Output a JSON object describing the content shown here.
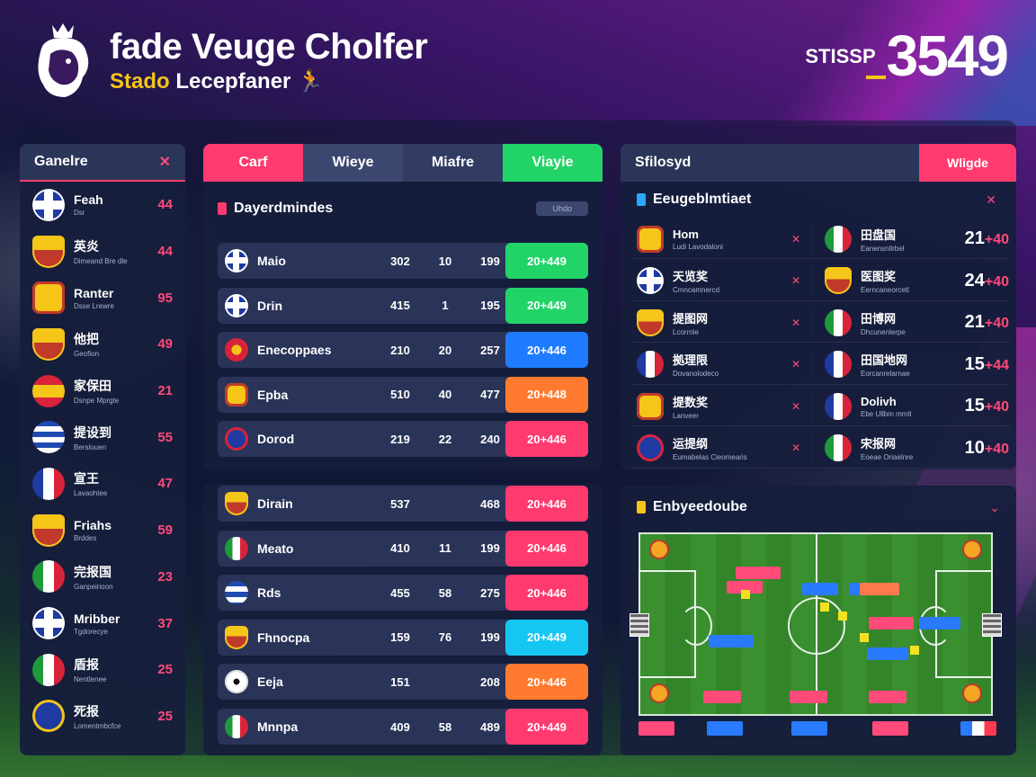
{
  "header": {
    "title": "fade Veuge Cholfer",
    "subtitle_accent": "Stado",
    "subtitle_rest": "Lecepfaner",
    "score_label": "STISSP",
    "score_value": "3549"
  },
  "colors": {
    "accent_pink": "#ff3a6e",
    "accent_green": "#22d468",
    "accent_blue": "#1f7bff",
    "accent_orange": "#ff7a2e",
    "accent_cyan": "#16c6f2",
    "accent_yellow": "#f5c518"
  },
  "sidebar": {
    "title": "Ganelre",
    "items": [
      {
        "name": "Feah",
        "sub": "Dsr",
        "value": "44",
        "badge": "uk-flag-icon"
      },
      {
        "name": "英炎",
        "sub": "Dimeand Bre dle",
        "value": "44",
        "badge": "shield-crest-icon"
      },
      {
        "name": "Ranter",
        "sub": "Dsse Lrewre",
        "value": "95",
        "badge": "hex-crest-icon"
      },
      {
        "name": "他把",
        "sub": "Geofion",
        "value": "49",
        "badge": "shield-crest-icon"
      },
      {
        "name": "家保田",
        "sub": "Dsnpe Mprgte",
        "value": "21",
        "badge": "spain-flag-icon"
      },
      {
        "name": "提设到",
        "sub": "Berslouen",
        "value": "55",
        "badge": "striped-flag-icon"
      },
      {
        "name": "宣王",
        "sub": "Lavaohtee",
        "value": "47",
        "badge": "france-flag-icon"
      },
      {
        "name": "Friahs",
        "sub": "Brddes",
        "value": "59",
        "badge": "shield-crest-icon"
      },
      {
        "name": "完报国",
        "sub": "Ganpeirioon",
        "value": "23",
        "badge": "italy-flag-icon"
      },
      {
        "name": "Mribber",
        "sub": "Tgdorecye",
        "value": "37",
        "badge": "uk-flag-icon"
      },
      {
        "name": "盾报",
        "sub": "Nentlenee",
        "value": "25",
        "badge": "italy-flag-icon"
      },
      {
        "name": "死报",
        "sub": "Lomentmbcfce",
        "value": "25",
        "badge": "number-crest-icon"
      }
    ]
  },
  "center": {
    "tabs": [
      "Carf",
      "Wieye",
      "Miafre",
      "Viayie"
    ],
    "section_title": "Dayerdmindes",
    "pill_label": "Uhdo",
    "rows_top": [
      {
        "name": "Maio",
        "c1": "302",
        "c2": "10",
        "c3": "199",
        "action": "20+449",
        "badge": "uk-flag-icon",
        "btn_color": "#22d468"
      },
      {
        "name": "Drin",
        "c1": "415",
        "c2": "1",
        "c3": "195",
        "action": "20+449",
        "badge": "uk-flag-icon",
        "btn_color": "#22d468"
      },
      {
        "name": "Enecoppaes",
        "c1": "210",
        "c2": "20",
        "c3": "257",
        "action": "20+446",
        "badge": "star-crest-icon",
        "btn_color": "#1f7bff"
      },
      {
        "name": "Epba",
        "c1": "510",
        "c2": "40",
        "c3": "477",
        "action": "20+448",
        "badge": "hex-crest-icon",
        "btn_color": "#ff7a2e"
      },
      {
        "name": "Dorod",
        "c1": "219",
        "c2": "22",
        "c3": "240",
        "action": "20+446",
        "badge": "club-crest-icon",
        "btn_color": "#ff3a6e"
      }
    ],
    "rows_bottom": [
      {
        "name": "Dirain",
        "c1": "537",
        "c2": "",
        "c3": "468",
        "action": "20+446",
        "badge": "shield-crest-icon",
        "btn_color": "#ff3a6e"
      },
      {
        "name": "Meato",
        "c1": "410",
        "c2": "11",
        "c3": "199",
        "action": "20+446",
        "badge": "italy-flag-icon",
        "btn_color": "#ff3a6e"
      },
      {
        "name": "Rds",
        "c1": "455",
        "c2": "58",
        "c3": "275",
        "action": "20+446",
        "badge": "striped-flag-icon",
        "btn_color": "#ff3a6e"
      },
      {
        "name": "Fhnocpa",
        "c1": "159",
        "c2": "76",
        "c3": "199",
        "action": "20+449",
        "badge": "shield-crest-icon",
        "btn_color": "#16c6f2"
      },
      {
        "name": "Eeja",
        "c1": "151",
        "c2": "",
        "c3": "208",
        "action": "20+446",
        "badge": "ball-icon",
        "btn_color": "#ff7a2e"
      },
      {
        "name": "Mnnpa",
        "c1": "409",
        "c2": "58",
        "c3": "489",
        "action": "20+449",
        "badge": "italy-flag-icon",
        "btn_color": "#ff3a6e"
      }
    ]
  },
  "fixtures": {
    "header_left": "Sfilosyd",
    "header_right": "Wligde",
    "section_title": "Eeugeblmtiaet",
    "matches": [
      {
        "home": "Hom",
        "home_sub": "Ludi Lavodaloni",
        "away": "田盘国",
        "away_sub": "Eanensnllrbel",
        "score": "21",
        "delta": "+40",
        "home_badge": "hex-crest-icon",
        "away_badge": "italy-flag-icon"
      },
      {
        "name_check": "",
        "home": "天览奖",
        "home_sub": "Cmncamnercd",
        "away": "医图奖",
        "away_sub": "Eerncaneorcetl",
        "score": "24",
        "delta": "+40",
        "home_badge": "uk-flag-icon",
        "away_badge": "shield-crest-icon"
      },
      {
        "home": "提图网",
        "home_sub": "Lcorrnle",
        "away": "田博网",
        "away_sub": "Dhcunenlerpe",
        "score": "21",
        "delta": "+40",
        "home_badge": "shield-crest-icon",
        "away_badge": "italy-flag-icon"
      },
      {
        "home": "拠理限",
        "home_sub": "Dovanolodeco",
        "away": "田国地网",
        "away_sub": "Eorcanrelarnae",
        "score": "15",
        "delta": "+44",
        "home_badge": "france-flag-icon",
        "away_badge": "france-flag-icon"
      },
      {
        "home": "提数奖",
        "home_sub": "Lanveer",
        "away": "Dolivh",
        "away_sub": "Ebe Ullbm mmtl",
        "score": "15",
        "delta": "+40",
        "home_badge": "hex-crest-icon",
        "away_badge": "france-flag-icon"
      },
      {
        "home": "运提纲",
        "home_sub": "Eumabelas Cieomearis",
        "away": "宋报网",
        "away_sub": "Eoeae Oriaelnre",
        "score": "10",
        "delta": "+40",
        "home_badge": "club-crest-icon",
        "away_badge": "italy-flag-icon"
      }
    ]
  },
  "formation": {
    "section_title": "Enbyeedoube"
  }
}
